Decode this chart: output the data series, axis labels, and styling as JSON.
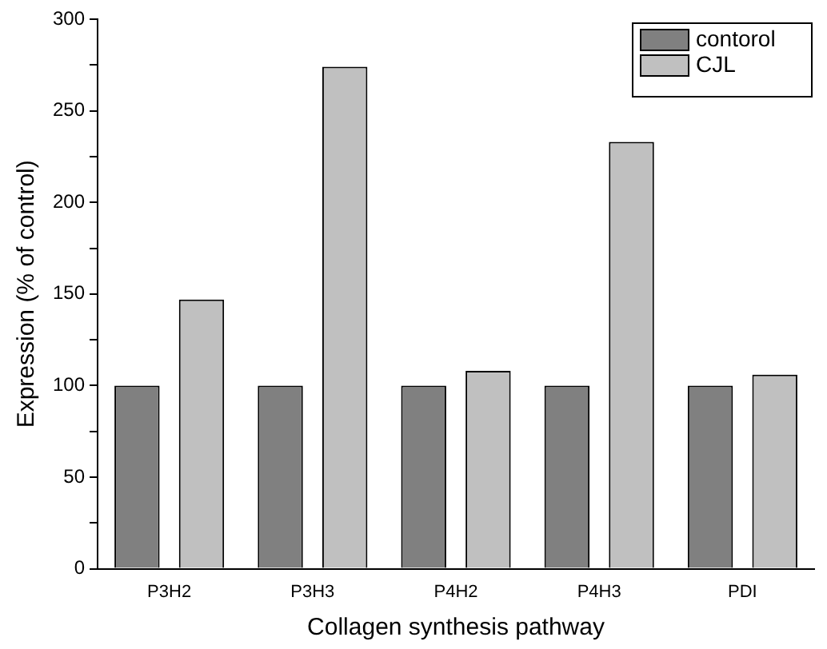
{
  "chart_data": {
    "type": "bar",
    "xlabel": "Collagen synthesis pathway",
    "ylabel": "Expression (% of control)",
    "categories": [
      "P3H2",
      "P3H3",
      "P4H2",
      "P4H3",
      "PDI"
    ],
    "series": [
      {
        "name": "contorol",
        "color": "#808080",
        "values": [
          100,
          100,
          100,
          100,
          100
        ]
      },
      {
        "name": "CJL",
        "color": "#c0c0c0",
        "values": [
          147,
          274,
          108,
          233,
          106
        ]
      }
    ],
    "ylim": [
      0,
      300
    ],
    "yticks": [
      0,
      {
        "value": 25,
        "label": null
      },
      50,
      {
        "value": 75,
        "label": null
      },
      100,
      {
        "value": 125,
        "label": null
      },
      150,
      {
        "value": 175,
        "label": null
      },
      200,
      {
        "value": 225,
        "label": null
      },
      250,
      {
        "value": 275,
        "label": null
      },
      300
    ],
    "grid": false,
    "legend": "top right"
  }
}
